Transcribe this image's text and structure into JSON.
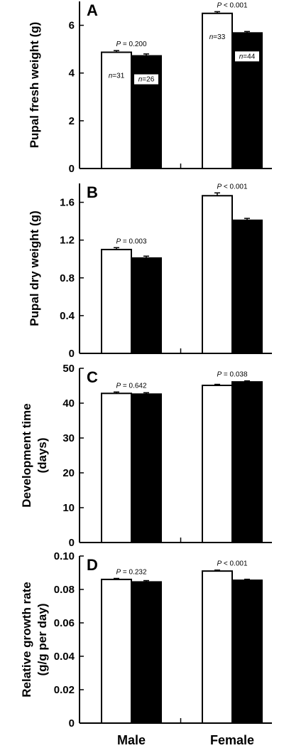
{
  "chart_data": [
    {
      "type": "bar",
      "panel": "A",
      "ylabel": "Pupal fresh weight (g)",
      "categories": [
        "Male",
        "Female"
      ],
      "ylim": [
        0,
        7
      ],
      "yticks": [
        "0",
        "2",
        "4",
        "6"
      ],
      "ytick_values": [
        0,
        2,
        4,
        6
      ],
      "series": [
        {
          "fill": "#ffffff",
          "values": [
            4.87,
            6.5
          ],
          "errors": [
            0.07,
            0.07
          ]
        },
        {
          "fill": "#000000",
          "values": [
            4.72,
            5.68
          ],
          "errors": [
            0.08,
            0.06
          ]
        }
      ],
      "p_values": [
        "P = 0.200",
        "P < 0.001"
      ],
      "n_labels": [
        [
          "n=31",
          "n=26"
        ],
        [
          "n=33",
          "n=44"
        ]
      ]
    },
    {
      "type": "bar",
      "panel": "B",
      "ylabel": "Pupal dry weight (g)",
      "categories": [
        "Male",
        "Female"
      ],
      "ylim": [
        0,
        1.8
      ],
      "yticks": [
        "0",
        "0.4",
        "0.8",
        "1.2",
        "1.6"
      ],
      "ytick_values": [
        0,
        0.4,
        0.8,
        1.2,
        1.6
      ],
      "series": [
        {
          "fill": "#ffffff",
          "values": [
            1.1,
            1.67
          ],
          "errors": [
            0.02,
            0.03
          ]
        },
        {
          "fill": "#000000",
          "values": [
            1.01,
            1.41
          ],
          "errors": [
            0.02,
            0.02
          ]
        }
      ],
      "p_values": [
        "P = 0.003",
        "P < 0.001"
      ]
    },
    {
      "type": "bar",
      "panel": "C",
      "ylabel": "Development time (days)",
      "ylabel_lines": [
        "Development time",
        "(days)"
      ],
      "categories": [
        "Male",
        "Female"
      ],
      "ylim": [
        0,
        50
      ],
      "yticks": [
        "0",
        "10",
        "20",
        "30",
        "40",
        "50"
      ],
      "ytick_values": [
        0,
        10,
        20,
        30,
        40,
        50
      ],
      "series": [
        {
          "fill": "#ffffff",
          "values": [
            42.8,
            45.1
          ],
          "errors": [
            0.4,
            0.3
          ]
        },
        {
          "fill": "#000000",
          "values": [
            42.6,
            46.1
          ],
          "errors": [
            0.4,
            0.3
          ]
        }
      ],
      "p_values": [
        "P = 0.642",
        "P = 0.038"
      ]
    },
    {
      "type": "bar",
      "panel": "D",
      "ylabel": "Relative growth rate (g/g per day)",
      "ylabel_lines": [
        "Relative growth rate",
        "(g/g per day)"
      ],
      "categories": [
        "Male",
        "Female"
      ],
      "ylim": [
        0,
        0.1
      ],
      "yticks": [
        "0",
        "0.02",
        "0.04",
        "0.06",
        "0.08",
        "0.10"
      ],
      "ytick_values": [
        0,
        0.02,
        0.04,
        0.06,
        0.08,
        0.1
      ],
      "series": [
        {
          "fill": "#ffffff",
          "values": [
            0.086,
            0.091
          ],
          "errors": [
            0.0006,
            0.0006
          ]
        },
        {
          "fill": "#000000",
          "values": [
            0.0845,
            0.0855
          ],
          "errors": [
            0.0008,
            0.0006
          ]
        }
      ],
      "p_values": [
        "P = 0.232",
        "P < 0.001"
      ]
    }
  ]
}
